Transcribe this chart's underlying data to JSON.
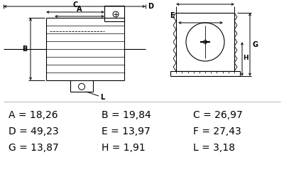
{
  "bg_color": "#ffffff",
  "text_color": "#000000",
  "line_color": "#000000",
  "table_rows": [
    [
      {
        "label": "A",
        "value": "18,26"
      },
      {
        "label": "B",
        "value": "19,84"
      },
      {
        "label": "C",
        "value": "26,97"
      }
    ],
    [
      {
        "label": "D",
        "value": "49,23"
      },
      {
        "label": "E",
        "value": "13,97"
      },
      {
        "label": "F",
        "value": "27,43"
      }
    ],
    [
      {
        "label": "G",
        "value": "13,87"
      },
      {
        "label": "H",
        "value": "1,91"
      },
      {
        "label": "L",
        "value": "3,18"
      }
    ]
  ]
}
